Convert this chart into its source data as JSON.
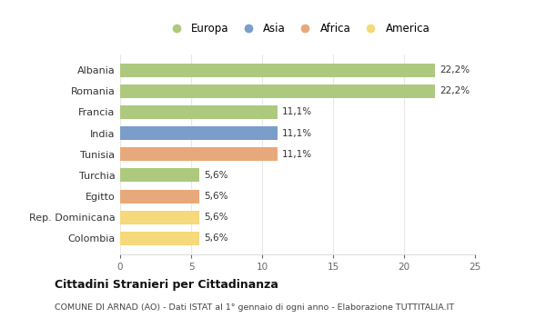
{
  "categories": [
    "Albania",
    "Romania",
    "Francia",
    "India",
    "Tunisia",
    "Turchia",
    "Egitto",
    "Rep. Dominicana",
    "Colombia"
  ],
  "values": [
    22.2,
    22.2,
    11.1,
    11.1,
    11.1,
    5.6,
    5.6,
    5.6,
    5.6
  ],
  "labels": [
    "22,2%",
    "22,2%",
    "11,1%",
    "11,1%",
    "11,1%",
    "5,6%",
    "5,6%",
    "5,6%",
    "5,6%"
  ],
  "bar_colors": [
    "#adc97e",
    "#adc97e",
    "#adc97e",
    "#7b9dc9",
    "#e8a97a",
    "#adc97e",
    "#e8a97a",
    "#f5d97a",
    "#f5d97a"
  ],
  "legend": [
    {
      "label": "Europa",
      "color": "#adc97e"
    },
    {
      "label": "Asia",
      "color": "#7b9dc9"
    },
    {
      "label": "Africa",
      "color": "#e8a97a"
    },
    {
      "label": "America",
      "color": "#f5d97a"
    }
  ],
  "xlim": [
    0,
    25
  ],
  "xticks": [
    0,
    5,
    10,
    15,
    20,
    25
  ],
  "title": "Cittadini Stranieri per Cittadinanza",
  "subtitle": "COMUNE DI ARNAD (AO) - Dati ISTAT al 1° gennaio di ogni anno - Elaborazione TUTTITALIA.IT",
  "bg_color": "#ffffff",
  "grid_color": "#e8e8e8"
}
